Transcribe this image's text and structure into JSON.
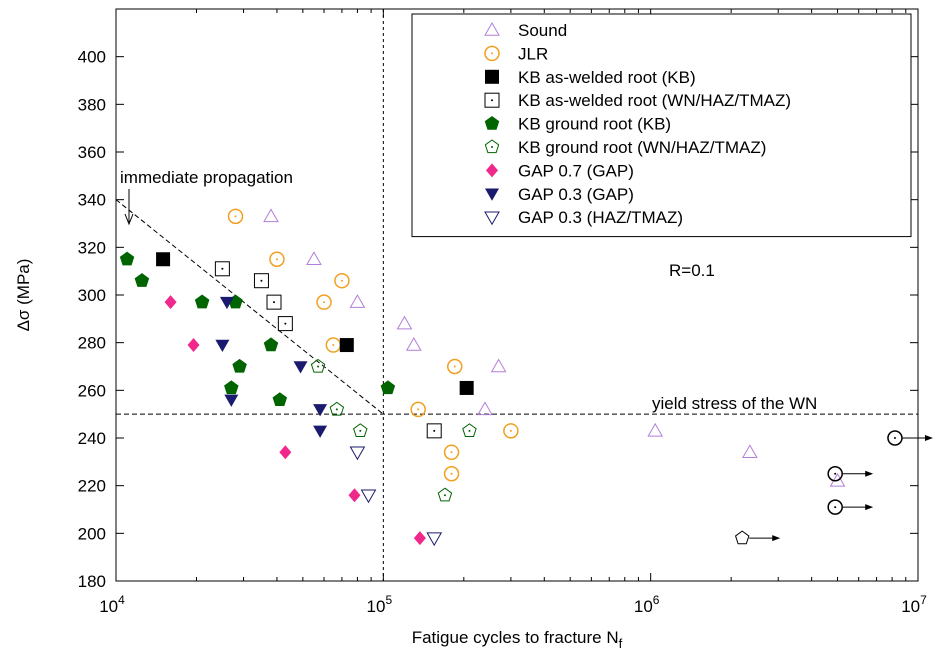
{
  "chart_data": {
    "type": "scatter",
    "title": "",
    "xlabel": "Fatigue cycles to fracture N",
    "xlabel_subscript": "f",
    "ylabel": "Δσ (MPa)",
    "xscale": "log",
    "xlim": [
      10000,
      10000000
    ],
    "ylim": [
      180,
      420
    ],
    "x_ticks": [
      {
        "base": "10",
        "exp": "4",
        "value": 10000
      },
      {
        "base": "10",
        "exp": "5",
        "value": 100000
      },
      {
        "base": "10",
        "exp": "6",
        "value": 1000000
      },
      {
        "base": "10",
        "exp": "7",
        "value": 10000000
      }
    ],
    "y_ticks": [
      180,
      200,
      220,
      240,
      260,
      280,
      300,
      320,
      340,
      360,
      380,
      400
    ],
    "legend_position": "top-right",
    "series": [
      {
        "name": "Sound",
        "marker": "triangle-up-open",
        "color": "#b27fd9",
        "points": [
          [
            38000,
            333
          ],
          [
            55000,
            315
          ],
          [
            80000,
            297
          ],
          [
            120000,
            288
          ],
          [
            130000,
            279
          ],
          [
            270000,
            270
          ],
          [
            240000,
            252
          ],
          [
            1040000,
            243
          ],
          [
            2350000,
            234
          ],
          [
            5000000,
            222
          ]
        ]
      },
      {
        "name": "JLR",
        "marker": "circle-dot-open",
        "color": "#f0a020",
        "points": [
          [
            28000,
            333
          ],
          [
            40000,
            315
          ],
          [
            60000,
            297
          ],
          [
            70000,
            306
          ],
          [
            65000,
            279
          ],
          [
            135000,
            252
          ],
          [
            185000,
            270
          ],
          [
            180000,
            234
          ],
          [
            180000,
            225
          ],
          [
            300000,
            243
          ]
        ]
      },
      {
        "name": "KB as-welded root (KB)",
        "marker": "square-filled",
        "color": "#000000",
        "points": [
          [
            15000,
            315
          ],
          [
            73000,
            279
          ],
          [
            205000,
            261
          ]
        ]
      },
      {
        "name": "KB as-welded root (WN/HAZ/TMAZ)",
        "marker": "square-dot-open",
        "color": "#000000",
        "points": [
          [
            25000,
            311
          ],
          [
            35000,
            306
          ],
          [
            39000,
            297
          ],
          [
            43000,
            288
          ],
          [
            155000,
            243
          ]
        ]
      },
      {
        "name": "KB ground root (KB)",
        "marker": "pentagon-filled",
        "color": "#006400",
        "points": [
          [
            11000,
            315
          ],
          [
            12500,
            306
          ],
          [
            21000,
            297
          ],
          [
            28000,
            297
          ],
          [
            29000,
            270
          ],
          [
            27000,
            261
          ],
          [
            38000,
            279
          ],
          [
            41000,
            256
          ],
          [
            104000,
            261
          ]
        ]
      },
      {
        "name": "KB ground root (WN/HAZ/TMAZ)",
        "marker": "pentagon-dot-open",
        "color": "#006400",
        "points": [
          [
            57000,
            270
          ],
          [
            67000,
            252
          ],
          [
            82000,
            243
          ],
          [
            170000,
            216
          ],
          [
            210000,
            243
          ]
        ]
      },
      {
        "name": "GAP 0.7 (GAP)",
        "marker": "diamond-filled",
        "color": "#f0288c",
        "points": [
          [
            16000,
            297
          ],
          [
            19500,
            279
          ],
          [
            43000,
            234
          ],
          [
            78000,
            216
          ],
          [
            137000,
            198
          ]
        ]
      },
      {
        "name": "GAP 0.3 (GAP)",
        "marker": "triangle-down-filled",
        "color": "#1a1a6e",
        "points": [
          [
            26000,
            297
          ],
          [
            25000,
            279
          ],
          [
            27000,
            256
          ],
          [
            49000,
            270
          ],
          [
            58000,
            252
          ],
          [
            58000,
            243
          ]
        ]
      },
      {
        "name": "GAP 0.3 (HAZ/TMAZ)",
        "marker": "triangle-down-open",
        "color": "#1a1a6e",
        "points": [
          [
            80000,
            234
          ],
          [
            88000,
            216
          ],
          [
            155000,
            198
          ]
        ]
      }
    ],
    "runouts": [
      {
        "series": "JLR",
        "marker": "circle-dot-open",
        "color": "#000000",
        "x": 8200000,
        "y": 240
      },
      {
        "series": "JLR",
        "marker": "circle-dot-open",
        "color": "#000000",
        "x": 4900000,
        "y": 225
      },
      {
        "series": "JLR",
        "marker": "circle-dot-open",
        "color": "#000000",
        "x": 4900000,
        "y": 211
      },
      {
        "series": "KB ground root (WN/HAZ/TMAZ)",
        "marker": "pentagon-open",
        "color": "#000000",
        "x": 2200000,
        "y": 198
      }
    ],
    "annotations": {
      "immediate_propagation": "immediate propagation",
      "yield_stress": "yield stress of the WN",
      "r_ratio": "R=0.1"
    },
    "reference_lines": {
      "yield_stress_y": 250,
      "vertical_x": 100000,
      "immediate_line": [
        [
          10000,
          340
        ],
        [
          100000,
          250
        ]
      ]
    }
  }
}
